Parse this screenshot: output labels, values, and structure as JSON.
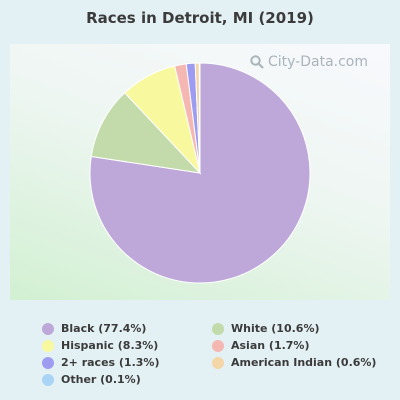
{
  "chart_data": {
    "type": "pie",
    "title": "Races in Detroit, MI (2019)",
    "watermark": "City-Data.com",
    "legend_position": "bottom",
    "slices": [
      {
        "label": "Black (77.4%)",
        "name": "Black",
        "value": 77.4,
        "color": "#bea8d9"
      },
      {
        "label": "White (10.6%)",
        "name": "White",
        "value": 10.6,
        "color": "#c3dbaa"
      },
      {
        "label": "Hispanic (8.3%)",
        "name": "Hispanic",
        "value": 8.3,
        "color": "#f8f99e"
      },
      {
        "label": "Asian (1.7%)",
        "name": "Asian",
        "value": 1.7,
        "color": "#f5b7b2"
      },
      {
        "label": "2+ races (1.3%)",
        "name": "2+ races",
        "value": 1.3,
        "color": "#9e9cf0"
      },
      {
        "label": "American Indian (0.6%)",
        "name": "American Indian",
        "value": 0.6,
        "color": "#f5d6a8"
      },
      {
        "label": "Other (0.1%)",
        "name": "Other",
        "value": 0.1,
        "color": "#a9d4f5"
      }
    ]
  }
}
